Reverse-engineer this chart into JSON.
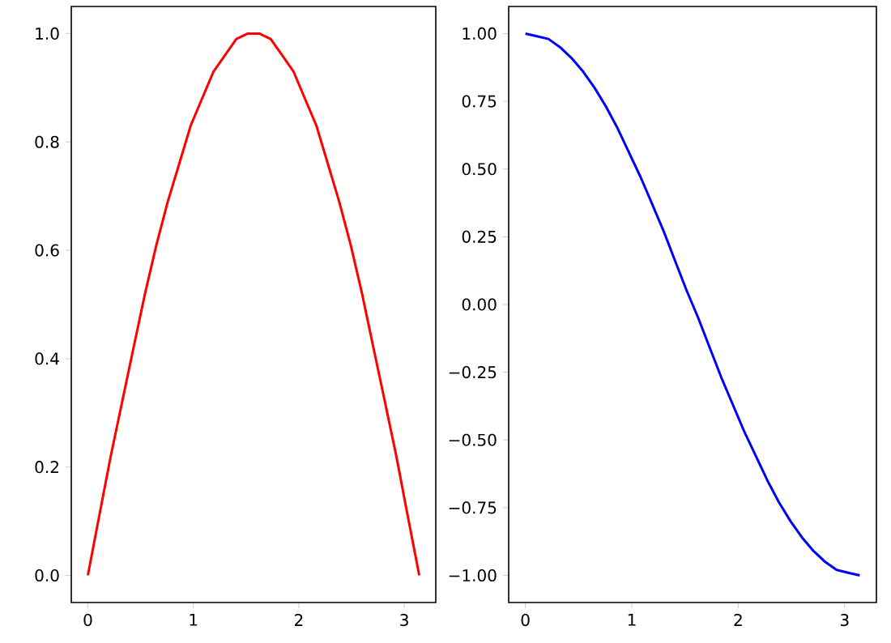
{
  "chart_data": [
    {
      "type": "line",
      "x": [
        0,
        0.108,
        0.217,
        0.325,
        0.433,
        0.542,
        0.65,
        0.758,
        0.867,
        0.975,
        1.083,
        1.192,
        1.3,
        1.408,
        1.517,
        1.625,
        1.733,
        1.842,
        1.95,
        2.058,
        2.167,
        2.275,
        2.383,
        2.492,
        2.6,
        2.708,
        2.817,
        2.925,
        3.033,
        3.142
      ],
      "series": [
        {
          "color": "#ff0000",
          "values": [
            0,
            0.11,
            0.22,
            0.32,
            0.42,
            0.52,
            0.61,
            0.69,
            0.76,
            0.83,
            0.88,
            0.93,
            0.96,
            0.99,
            1.0,
            1.0,
            0.99,
            0.96,
            0.93,
            0.88,
            0.83,
            0.76,
            0.69,
            0.61,
            0.52,
            0.42,
            0.32,
            0.22,
            0.11,
            0.0
          ]
        }
      ],
      "xlim": [
        -0.157,
        3.299
      ],
      "ylim": [
        -0.05,
        1.05
      ],
      "xticks": [
        0,
        1,
        2,
        3
      ],
      "yticks": [
        {
          "value": 0,
          "label": "0.0"
        },
        {
          "value": 0.2,
          "label": "0.2"
        },
        {
          "value": 0.4,
          "label": "0.4"
        },
        {
          "value": 0.6,
          "label": "0.6"
        },
        {
          "value": 0.8,
          "label": "0.8"
        },
        {
          "value": 1,
          "label": "1.0"
        }
      ]
    },
    {
      "type": "line",
      "x": [
        0,
        0.108,
        0.217,
        0.325,
        0.433,
        0.542,
        0.65,
        0.758,
        0.867,
        0.975,
        1.083,
        1.192,
        1.3,
        1.408,
        1.517,
        1.625,
        1.733,
        1.842,
        1.95,
        2.058,
        2.167,
        2.275,
        2.383,
        2.492,
        2.6,
        2.708,
        2.817,
        2.925,
        3.033,
        3.142
      ],
      "series": [
        {
          "color": "#0000ff",
          "values": [
            1.0,
            0.99,
            0.98,
            0.95,
            0.91,
            0.86,
            0.8,
            0.73,
            0.65,
            0.56,
            0.47,
            0.37,
            0.27,
            0.16,
            0.05,
            -0.05,
            -0.16,
            -0.27,
            -0.37,
            -0.47,
            -0.56,
            -0.65,
            -0.73,
            -0.8,
            -0.86,
            -0.91,
            -0.95,
            -0.98,
            -0.99,
            -1.0
          ]
        }
      ],
      "xlim": [
        -0.157,
        3.299
      ],
      "ylim": [
        -1.1,
        1.1
      ],
      "xticks": [
        0,
        1,
        2,
        3
      ],
      "yticks": [
        {
          "value": -1,
          "label": "−1.00"
        },
        {
          "value": -0.75,
          "label": "−0.75"
        },
        {
          "value": -0.5,
          "label": "−0.50"
        },
        {
          "value": -0.25,
          "label": "−0.25"
        },
        {
          "value": 0,
          "label": "0.00"
        },
        {
          "value": 0.25,
          "label": "0.25"
        },
        {
          "value": 0.5,
          "label": "0.50"
        },
        {
          "value": 0.75,
          "label": "0.75"
        },
        {
          "value": 1,
          "label": "1.00"
        }
      ]
    }
  ]
}
